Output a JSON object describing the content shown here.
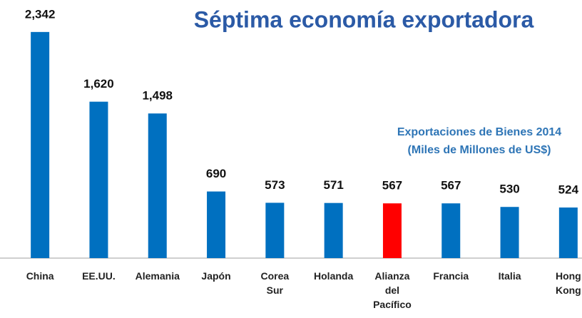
{
  "chart_data": {
    "type": "bar",
    "title": "Séptima economía exportadora",
    "subtitle": [
      "Exportaciones de Bienes 2014",
      "(Miles de Millones de US$)"
    ],
    "categories": [
      "China",
      "EE.UU.",
      "Alemania",
      "Japón",
      "Corea Sur",
      "Holanda",
      "Alianza del Pacífico",
      "Francia",
      "Italia",
      "Hong Kong"
    ],
    "values": [
      2342,
      1620,
      1498,
      690,
      573,
      571,
      567,
      567,
      530,
      524
    ],
    "value_labels": [
      "2,342",
      "1,620",
      "1,498",
      "690",
      "573",
      "571",
      "567",
      "567",
      "530",
      "524"
    ],
    "colors": [
      "#0070c0",
      "#0070c0",
      "#0070c0",
      "#0070c0",
      "#0070c0",
      "#0070c0",
      "#ff0000",
      "#0070c0",
      "#0070c0",
      "#0070c0"
    ],
    "ylim": [
      0,
      2400
    ]
  }
}
